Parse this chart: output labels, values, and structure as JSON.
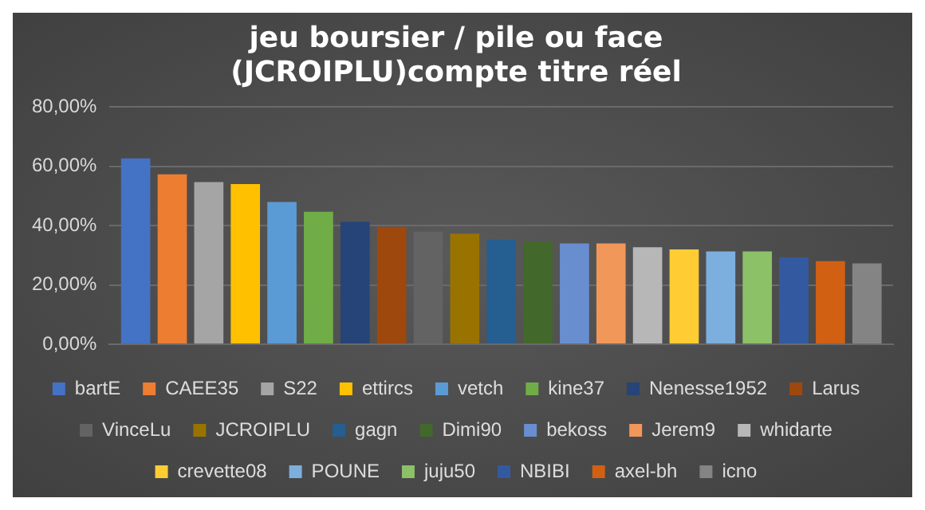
{
  "chart_data": {
    "type": "bar",
    "title": [
      "jeu boursier / pile ou face",
      "(JCROIPLU)compte titre réel"
    ],
    "categories": [
      null
    ],
    "series": [
      {
        "name": "bartE",
        "color": "#4472c4",
        "values": [
          62.7
        ]
      },
      {
        "name": "CAEE35",
        "color": "#ed7d31",
        "values": [
          57.3
        ]
      },
      {
        "name": "S22",
        "color": "#a5a5a5",
        "values": [
          54.7
        ]
      },
      {
        "name": "ettircs",
        "color": "#ffc000",
        "values": [
          54.0
        ]
      },
      {
        "name": "vetch",
        "color": "#5b9bd5",
        "values": [
          48.0
        ]
      },
      {
        "name": "kine37",
        "color": "#70ad47",
        "values": [
          44.7
        ]
      },
      {
        "name": "Nenesse1952",
        "color": "#264478",
        "values": [
          41.3
        ]
      },
      {
        "name": "Larus",
        "color": "#9e480e",
        "values": [
          39.6
        ]
      },
      {
        "name": "VinceLu",
        "color": "#636363",
        "values": [
          38.0
        ]
      },
      {
        "name": "JCROIPLU",
        "color": "#997300",
        "values": [
          37.3
        ]
      },
      {
        "name": "gagn",
        "color": "#255e91",
        "values": [
          35.3
        ]
      },
      {
        "name": "Dimi90",
        "color": "#43682b",
        "values": [
          34.7
        ]
      },
      {
        "name": "bekoss",
        "color": "#698ed0",
        "values": [
          34.0
        ]
      },
      {
        "name": "Jerem9",
        "color": "#f1975a",
        "values": [
          34.0
        ]
      },
      {
        "name": "whidarte",
        "color": "#b7b7b7",
        "values": [
          32.7
        ]
      },
      {
        "name": "crevette08",
        "color": "#ffcd33",
        "values": [
          32.0
        ]
      },
      {
        "name": "POUNE",
        "color": "#7cafdd",
        "values": [
          31.3
        ]
      },
      {
        "name": "juju50",
        "color": "#8cc168",
        "values": [
          31.3
        ]
      },
      {
        "name": "NBIBI",
        "color": "#335aa1",
        "values": [
          29.3
        ]
      },
      {
        "name": "axel-bh",
        "color": "#d26012",
        "values": [
          28.0
        ]
      },
      {
        "name": "icno",
        "color": "#848484",
        "values": [
          27.3
        ]
      }
    ],
    "ylim": [
      0,
      80
    ],
    "yticks": [
      {
        "value": 0,
        "label": "0,00%"
      },
      {
        "value": 20,
        "label": "20,00%"
      },
      {
        "value": 40,
        "label": "40,00%"
      },
      {
        "value": 60,
        "label": "60,00%"
      },
      {
        "value": 80,
        "label": "80,00%"
      }
    ],
    "grid": "y",
    "legend": "bottom"
  }
}
